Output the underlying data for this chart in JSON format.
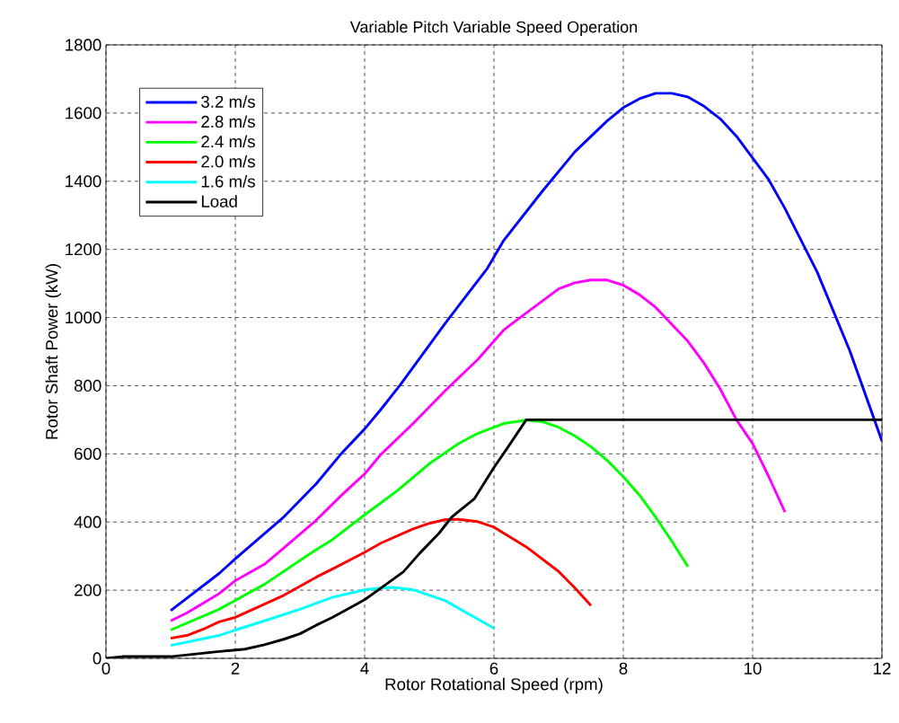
{
  "chart_data": {
    "type": "line",
    "title": "Variable Pitch Variable Speed Operation",
    "xlabel": "Rotor Rotational Speed (rpm)",
    "ylabel": "Rotor Shaft Power (kW)",
    "xlim": [
      0,
      12
    ],
    "ylim": [
      0,
      1800
    ],
    "xticks": [
      0,
      2,
      4,
      6,
      8,
      10,
      12
    ],
    "yticks": [
      0,
      200,
      400,
      600,
      800,
      1000,
      1200,
      1400,
      1600,
      1800
    ],
    "grid": true,
    "legend": "top left",
    "line_style": "solid",
    "marker": "none",
    "series": [
      {
        "name": "3.2 m/s",
        "color": "#0000ff",
        "x": [
          1.0,
          1.75,
          2.0,
          2.75,
          3.25,
          3.65,
          4.0,
          4.25,
          4.55,
          5.25,
          5.9,
          6.15,
          6.75,
          7.25,
          7.75,
          8.0,
          8.25,
          8.5,
          8.75,
          9.0,
          9.25,
          9.5,
          9.75,
          10.0,
          10.25,
          10.5,
          11.0,
          11.5,
          12.0
        ],
        "values": [
          140,
          249,
          292,
          415,
          512,
          603,
          673,
          730,
          802,
          984,
          1145,
          1226,
          1371,
          1486,
          1577,
          1616,
          1642,
          1658,
          1658,
          1647,
          1620,
          1583,
          1532,
          1468,
          1404,
          1320,
          1133,
          904,
          638
        ]
      },
      {
        "name": "2.8 m/s",
        "color": "#ff00ff",
        "x": [
          1.0,
          1.25,
          1.75,
          2.0,
          2.45,
          2.75,
          3.25,
          3.65,
          4.0,
          4.25,
          4.75,
          5.25,
          5.75,
          6.15,
          6.25,
          7.0,
          7.25,
          7.5,
          7.75,
          8.0,
          8.25,
          8.5,
          9.0,
          9.25,
          9.5,
          9.75,
          10.0,
          10.25,
          10.5
        ],
        "values": [
          110,
          133,
          190,
          228,
          276,
          324,
          405,
          480,
          541,
          598,
          689,
          786,
          877,
          963,
          978,
          1084,
          1102,
          1110,
          1110,
          1095,
          1067,
          1030,
          930,
          866,
          790,
          700,
          630,
          533,
          429
        ]
      },
      {
        "name": "2.4 m/s",
        "color": "#00ff00",
        "x": [
          1.0,
          1.75,
          2.45,
          3.25,
          3.5,
          4.0,
          4.5,
          5.0,
          5.45,
          5.75,
          6.15,
          6.5,
          6.75,
          7.0,
          7.25,
          7.5,
          7.75,
          8.0,
          8.25,
          8.5,
          8.75,
          9.0
        ],
        "values": [
          83,
          144,
          217,
          319,
          348,
          421,
          491,
          571,
          630,
          660,
          689,
          699,
          694,
          678,
          653,
          621,
          581,
          533,
          479,
          414,
          344,
          269
        ]
      },
      {
        "name": "2.0 m/s",
        "color": "#ff0000",
        "x": [
          1.0,
          1.25,
          1.5,
          1.75,
          2.0,
          2.75,
          3.25,
          3.5,
          4.0,
          4.25,
          4.75,
          5.0,
          5.25,
          5.45,
          5.75,
          6.0,
          6.5,
          7.0,
          7.25,
          7.5
        ],
        "values": [
          59,
          67,
          85,
          107,
          120,
          185,
          238,
          262,
          311,
          338,
          380,
          396,
          407,
          408,
          401,
          385,
          327,
          255,
          207,
          155
        ]
      },
      {
        "name": "1.6 m/s",
        "color": "#00ffff",
        "x": [
          1.0,
          1.75,
          2.0,
          2.45,
          3.0,
          3.5,
          4.0,
          4.25,
          4.45,
          4.75,
          5.25,
          6.0
        ],
        "values": [
          38,
          67,
          83,
          110,
          144,
          179,
          201,
          206,
          208,
          201,
          169,
          88
        ]
      },
      {
        "name": "Load",
        "color": "#000000",
        "x": [
          0,
          0.25,
          1.0,
          1.75,
          2.15,
          2.45,
          2.75,
          3.0,
          3.25,
          3.5,
          4.0,
          4.25,
          4.6,
          4.85,
          5.15,
          5.35,
          5.7,
          6.0,
          6.2,
          6.5,
          12.0
        ],
        "values": [
          0,
          5,
          5,
          20,
          27,
          40,
          56,
          72,
          97,
          120,
          172,
          206,
          254,
          308,
          367,
          415,
          469,
          560,
          615,
          700,
          700
        ]
      }
    ]
  }
}
